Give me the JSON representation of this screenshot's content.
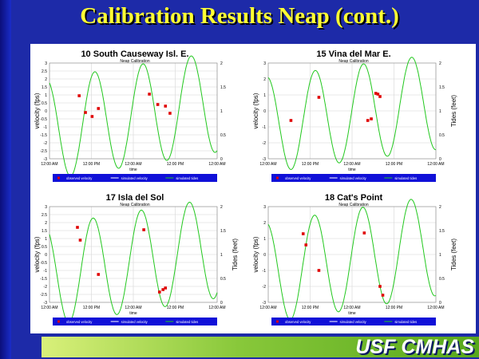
{
  "page": {
    "title": "Calibration Results Neap (cont.)",
    "brand": "USF CMHAS"
  },
  "chart_data": [
    {
      "type": "line",
      "title": "10 South Causeway Isl. E.",
      "subtitle": "Neap Calibration",
      "xlabel": "time",
      "ylabel_left": "velocity (fps)",
      "ylabel_right": "",
      "ylim_left": [
        -3,
        3
      ],
      "yticks_left": [
        "3",
        "2.5",
        "2",
        "1.5",
        "1",
        "0.5",
        "0",
        "-0.5",
        "-1",
        "-1.5",
        "-2",
        "-2.5",
        "-3"
      ],
      "ylim_right": [
        0,
        2
      ],
      "yticks_right": [
        "2",
        "1.5",
        "1",
        "0.5",
        "0"
      ],
      "xlim": [
        0,
        48
      ],
      "xticks": [
        "12:00 AM",
        "12:00 PM",
        "12:00 AM",
        "12:00 PM",
        "12:00 AM"
      ],
      "legend": [
        "observed velocity",
        "simulated velocity",
        "simulated tides"
      ],
      "series": [
        {
          "kind": "observed_points",
          "x": [
            8.5,
            10.3,
            12.2,
            14.0,
            28.6,
            31.0,
            33.2,
            34.5
          ],
          "y": [
            0.95,
            -0.1,
            -0.35,
            0.15,
            1.05,
            0.4,
            0.3,
            -0.15
          ]
        },
        {
          "kind": "simulated_tides",
          "amp": 1.05,
          "mean": 0.9,
          "period": 13.8,
          "phase": 9.5,
          "drift": 0.012
        }
      ]
    },
    {
      "type": "line",
      "title": "15 Vina del Mar E.",
      "subtitle": "Neap Calibration",
      "xlabel": "time",
      "ylabel_left": "velocity (fps)",
      "ylabel_right": "Tides (feet)",
      "ylim_left": [
        -3,
        3
      ],
      "yticks_left": [
        "3",
        "2",
        "1",
        "0",
        "-1",
        "-2",
        "-3"
      ],
      "ylim_right": [
        0,
        2
      ],
      "yticks_right": [
        "2",
        "1.5",
        "1",
        "0.5",
        "0"
      ],
      "xlim": [
        0,
        48
      ],
      "xticks": [
        "12:00 AM",
        "12:00 PM",
        "12:00 AM",
        "12:00 PM",
        "12:00 AM"
      ],
      "legend": [
        "observed velocity",
        "simulated velocity",
        "simulated tides"
      ],
      "series": [
        {
          "kind": "observed_points",
          "x": [
            6.5,
            14.5,
            28.5,
            29.5,
            30.8,
            31.4,
            32.0
          ],
          "y": [
            -0.6,
            0.85,
            -0.6,
            -0.5,
            1.1,
            1.05,
            0.9
          ]
        },
        {
          "kind": "simulated_tides",
          "amp": 1.0,
          "mean": 0.95,
          "period": 13.8,
          "phase": 10.0,
          "drift": 0.01
        }
      ]
    },
    {
      "type": "line",
      "title": "17 Isla del Sol",
      "subtitle": "Neap Calibration",
      "xlabel": "time",
      "ylabel_left": "velocity (fps)",
      "ylabel_right": "Tides (feet)",
      "ylim_left": [
        -3,
        3
      ],
      "yticks_left": [
        "3",
        "2.5",
        "2",
        "1.5",
        "1",
        "0.5",
        "0",
        "-0.5",
        "-1",
        "-1.5",
        "-2",
        "-2.5",
        "-3"
      ],
      "ylim_right": [
        0,
        2
      ],
      "yticks_right": [
        "2",
        "1.5",
        "1",
        "0.5",
        "0"
      ],
      "xlim": [
        0,
        48
      ],
      "xticks": [
        "12:00 AM",
        "12:00 PM",
        "12:00 AM",
        "12:00 PM",
        "12:00 AM"
      ],
      "legend": [
        "observed velocity",
        "simulated velocity",
        "simulated tides"
      ],
      "series": [
        {
          "kind": "observed_points",
          "x": [
            8.0,
            8.8,
            14.0,
            27.0,
            31.5,
            32.5,
            33.2
          ],
          "y": [
            1.7,
            0.9,
            -1.25,
            1.55,
            -2.35,
            -2.2,
            -2.1
          ]
        },
        {
          "kind": "simulated_tides",
          "amp": 1.05,
          "mean": 0.85,
          "period": 13.8,
          "phase": 9.0,
          "drift": 0.012
        }
      ]
    },
    {
      "type": "line",
      "title": "18 Cat's Point",
      "subtitle": "Neap Calibration",
      "xlabel": "time",
      "ylabel_left": "velocity (fps)",
      "ylabel_right": "Tides (feet)",
      "ylim_left": [
        -3,
        3
      ],
      "yticks_left": [
        "3",
        "2",
        "1",
        "0",
        "-1",
        "-2",
        "-3"
      ],
      "ylim_right": [
        0,
        2
      ],
      "yticks_right": [
        "2",
        "1.5",
        "1",
        "0.5",
        "0"
      ],
      "xlim": [
        0,
        48
      ],
      "xticks": [
        "12:00 AM",
        "12:00 PM",
        "12:00 AM",
        "12:00 PM",
        "12:00 AM"
      ],
      "legend": [
        "observed velocity",
        "simulated velocity",
        "simulated tides"
      ],
      "series": [
        {
          "kind": "observed_points",
          "x": [
            10.0,
            10.8,
            14.5,
            27.5,
            32.0,
            32.8
          ],
          "y": [
            1.3,
            0.6,
            -1.0,
            1.35,
            -2.0,
            -2.55
          ]
        },
        {
          "kind": "simulated_tides",
          "amp": 1.05,
          "mean": 0.9,
          "period": 13.8,
          "phase": 9.8,
          "drift": 0.012
        }
      ]
    }
  ]
}
